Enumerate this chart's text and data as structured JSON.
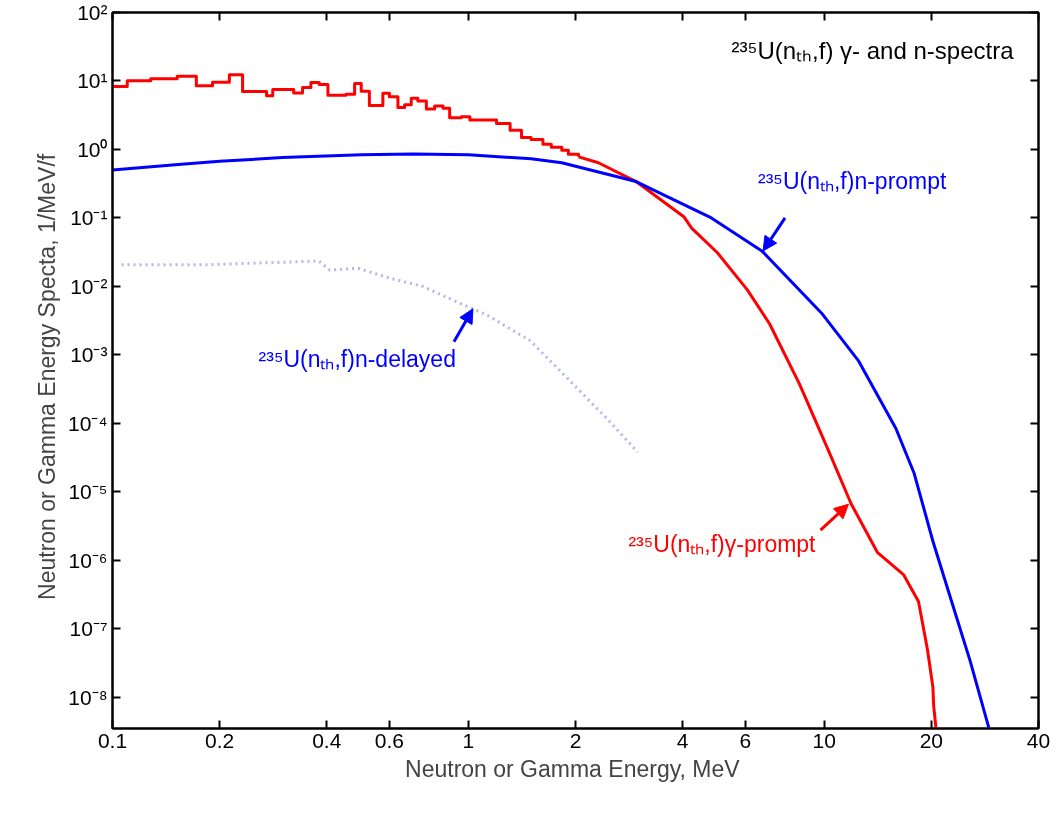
{
  "chart_data": {
    "type": "line",
    "title": "²³⁵U(nₜₕ,f) γ- and n-spectra",
    "xlabel": "Neutron or Gamma Energy,  MeV",
    "ylabel": "Neutron or Gamma  Energy Specta,  1/MeV/f",
    "log": "xy",
    "grid": false,
    "xlim": [
      0.1,
      40
    ],
    "ylim": [
      3.5e-09,
      100
    ],
    "xticks": [
      0.1,
      0.2,
      0.4,
      0.6,
      1,
      2,
      4,
      6,
      10,
      20,
      40
    ],
    "yticks": [
      {
        "value": 100,
        "label": "10²"
      },
      {
        "value": 10,
        "label": "10¹"
      },
      {
        "value": 1,
        "label": "10⁰"
      },
      {
        "value": 0.1,
        "label": "10⁻¹"
      },
      {
        "value": 0.01,
        "label": "10⁻²"
      },
      {
        "value": 0.001,
        "label": "10⁻³"
      },
      {
        "value": 0.0001,
        "label": "10⁻⁴"
      },
      {
        "value": 1e-05,
        "label": "10⁻⁵"
      },
      {
        "value": 1e-06,
        "label": "10⁻⁶"
      },
      {
        "value": 1e-07,
        "label": "10⁻⁷"
      },
      {
        "value": 1e-08,
        "label": "10⁻⁸"
      }
    ],
    "series": [
      {
        "type": "step",
        "color": "#ff0000",
        "line_style": "solid",
        "x": [
          0.1,
          0.11,
          0.128,
          0.152,
          0.172,
          0.191,
          0.213,
          0.232,
          0.271,
          0.282,
          0.323,
          0.342,
          0.361,
          0.381,
          0.403,
          0.453,
          0.479,
          0.5,
          0.527,
          0.575,
          0.6,
          0.634,
          0.662,
          0.691,
          0.721,
          0.762,
          0.804,
          0.849,
          0.886,
          0.955,
          1.01,
          1.2,
          1.31,
          1.41,
          1.5,
          1.62,
          1.71,
          1.83,
          1.91,
          2.04
        ],
        "values": [
          8.3,
          10.1,
          10.8,
          11.7,
          8.5,
          9.6,
          12.3,
          7.0,
          6.1,
          7.5,
          6.7,
          8.0,
          9.5,
          8.9,
          6.2,
          6.4,
          9.2,
          7.1,
          4.4,
          6.6,
          5.9,
          4.1,
          4.5,
          5.6,
          5.1,
          3.9,
          4.3,
          4.0,
          2.9,
          3.0,
          2.7,
          2.4,
          1.9,
          1.5,
          1.4,
          1.19,
          1.08,
          0.97,
          0.85,
          0.78
        ]
      },
      {
        "type": "line",
        "color": "#ff0000",
        "line_style": "solid",
        "x": [
          2.04,
          2.32,
          2.96,
          4.04,
          4.24,
          5.01,
          6.08,
          7.02,
          8.51,
          10.3,
          11.9,
          14.1,
          16.7,
          18.4,
          19.5,
          20.2,
          20.3,
          20.6
        ],
        "values": [
          0.78,
          0.64,
          0.34,
          0.103,
          0.071,
          0.031,
          0.0089,
          0.00285,
          0.00038,
          3.9e-05,
          6.7e-06,
          1.31e-06,
          6.2e-07,
          2.5e-07,
          5e-08,
          1.4e-08,
          7.5e-09,
          3.6e-09
        ]
      },
      {
        "color": "#0000ff",
        "line_style": "solid",
        "x": [
          0.1,
          0.15,
          0.2,
          0.3,
          0.5,
          0.7,
          1,
          1.5,
          1.83,
          2.96,
          4.77,
          6.68,
          9.82,
          12.5,
          15.9,
          17.9,
          20.2,
          22.8,
          25.7,
          29.0
        ],
        "values": [
          0.5,
          0.6,
          0.67,
          0.76,
          0.84,
          0.86,
          0.84,
          0.73,
          0.64,
          0.34,
          0.103,
          0.033,
          0.0041,
          0.00081,
          8.4e-05,
          1.85e-05,
          1.9e-06,
          2.5e-07,
          3.4e-08,
          3.6e-09
        ]
      },
      {
        "type": "line",
        "color": "#b4b4ee",
        "line_style": "dotted",
        "x": [
          0.106,
          0.185,
          0.268,
          0.38,
          0.408,
          0.49,
          0.59,
          0.744,
          0.938,
          1.13,
          1.49,
          1.88,
          2.48,
          2.99
        ],
        "values": [
          0.0208,
          0.0208,
          0.0221,
          0.0235,
          0.0173,
          0.0184,
          0.0136,
          0.01,
          0.0058,
          0.0038,
          0.00162,
          0.00048,
          0.00011,
          3.8e-05
        ]
      }
    ],
    "annotations": [
      {
        "text": "²³⁵U(nₜₕ,f)n-prompt",
        "x": 6.73,
        "y": 0.033
      },
      {
        "text": "²³⁵U(nₜₕ,f)γ-prompt",
        "x": 11.7,
        "y": 6.6e-06
      },
      {
        "text": "²³⁵U(nₜₕ,f)n-delayed",
        "x": 1.03,
        "y": 0.0047
      }
    ]
  }
}
